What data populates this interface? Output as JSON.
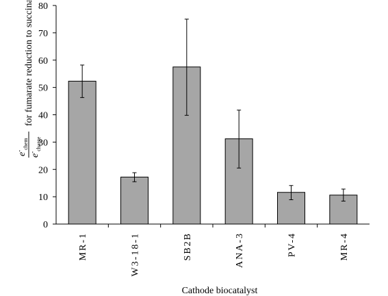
{
  "chart_data": {
    "type": "bar",
    "categories": [
      "MR-1",
      "W3-18-1",
      "SB2B",
      "ANA-3",
      "PV-4",
      "MR-4"
    ],
    "values": [
      52.3,
      17.2,
      57.5,
      31.2,
      11.6,
      10.6
    ],
    "errors": [
      [
        46.3,
        58.2
      ],
      [
        15.5,
        18.8
      ],
      [
        39.8,
        75.0
      ],
      [
        20.5,
        41.7
      ],
      [
        8.9,
        14.1
      ],
      [
        8.4,
        12.8
      ]
    ],
    "ylim": [
      0,
      80
    ],
    "yticks": [
      0,
      10,
      20,
      30,
      40,
      50,
      60,
      70,
      80
    ],
    "xlabel": "Cathode biocatalyst",
    "ylabel": {
      "numerator_base": "e",
      "numerator_sup": "-",
      "numerator_sub": "chem",
      "denominator_base": "e",
      "denominator_sup": "-",
      "denominator_sub": "charge",
      "suffix": "for fumarate reduction to succinate"
    },
    "grid": false,
    "legend": "none"
  }
}
